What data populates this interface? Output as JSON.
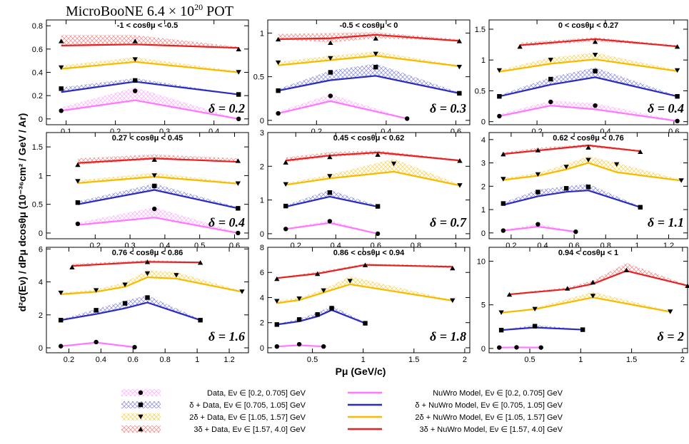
{
  "figure": {
    "title_main": "MicroBooNE 6.4 × 10",
    "title_exp": "20",
    "title_tail": " POT",
    "ylabel": "d²σ(Eν) / dPμ dcosθμ (10⁻³⁶cm² / GeV / Ar)",
    "xlabel": "Pμ (GeV/c)",
    "colors": {
      "r0": "#ff77ff",
      "r1": "#2b2bbf",
      "r2": "#f5bb00",
      "r3": "#e52222"
    }
  },
  "legend": {
    "data": [
      {
        "label": "Data, Eν ∈ [0.2,   0.705] GeV",
        "marker": "circle"
      },
      {
        "label": "δ + Data, Eν ∈ [0.705, 1.05] GeV",
        "marker": "square"
      },
      {
        "label": "2δ + Data, Eν ∈ [1.05,   1.57] GeV",
        "marker": "tri-down"
      },
      {
        "label": "3δ + Data, Eν ∈ [1.57,     4.0] GeV",
        "marker": "tri-up"
      }
    ],
    "model": [
      {
        "label": "NuWro Model, Eν ∈ [0.2,   0.705] GeV"
      },
      {
        "label": "δ + NuWro Model, Eν ∈ [0.705, 1.05] GeV"
      },
      {
        "label": "2δ + NuWro Model, Eν ∈ [1.05,   1.57] GeV"
      },
      {
        "label": "3δ + NuWro Model, Eν ∈ [1.57,     4.0] GeV"
      }
    ]
  },
  "chart_data": [
    {
      "type": "line",
      "title": "-1 < cosθμ < -0.5",
      "delta_label": "δ = 0.2",
      "xlim": [
        0.06,
        0.47
      ],
      "ylim": [
        -0.05,
        0.85
      ],
      "xticks": [
        0.1,
        0.2,
        0.3,
        0.4
      ],
      "yticks": [
        0,
        0.2,
        0.4,
        0.6,
        0.8
      ],
      "series": [
        {
          "x": [
            0.09,
            0.24,
            0.45
          ],
          "data": [
            0.07,
            0.24,
            0.0
          ],
          "model": [
            0.07,
            0.16,
            0.0
          ],
          "band": [
            0.1,
            0.27,
            0.0
          ]
        },
        {
          "x": [
            0.09,
            0.24,
            0.45
          ],
          "data": [
            0.26,
            0.33,
            0.21
          ],
          "model": [
            0.23,
            0.32,
            0.21
          ],
          "band": [
            0.27,
            0.35,
            0.21
          ]
        },
        {
          "x": [
            0.09,
            0.24,
            0.45
          ],
          "data": [
            0.44,
            0.51,
            0.4
          ],
          "model": [
            0.43,
            0.49,
            0.4
          ],
          "band": [
            0.46,
            0.53,
            0.41
          ]
        },
        {
          "x": [
            0.09,
            0.24,
            0.45
          ],
          "data": [
            0.67,
            0.67,
            0.6
          ],
          "model": [
            0.63,
            0.64,
            0.61
          ],
          "band": [
            0.72,
            0.72,
            0.62
          ]
        }
      ]
    },
    {
      "type": "line",
      "title": "-0.5 < cosθμ < 0",
      "delta_label": "δ = 0.3",
      "xlim": [
        0.06,
        0.64
      ],
      "ylim": [
        -0.05,
        1.15
      ],
      "xticks": [
        0.2,
        0.4,
        0.6
      ],
      "yticks": [
        0,
        0.5,
        1
      ],
      "series": [
        {
          "x": [
            0.09,
            0.24,
            0.46
          ],
          "data": [
            0.08,
            0.28,
            0.02
          ],
          "model": [
            0.08,
            0.22,
            0.02
          ],
          "band": [
            0.1,
            0.3,
            0.02
          ]
        },
        {
          "x": [
            0.09,
            0.24,
            0.37,
            0.61
          ],
          "data": [
            0.34,
            0.55,
            0.61,
            0.31
          ],
          "model": [
            0.34,
            0.46,
            0.51,
            0.31
          ],
          "band": [
            0.36,
            0.57,
            0.65,
            0.32
          ]
        },
        {
          "x": [
            0.09,
            0.24,
            0.37,
            0.61
          ],
          "data": [
            0.66,
            0.71,
            0.76,
            0.61
          ],
          "model": [
            0.63,
            0.69,
            0.74,
            0.62
          ],
          "band": [
            0.67,
            0.74,
            0.79,
            0.63
          ]
        },
        {
          "x": [
            0.09,
            0.24,
            0.37,
            0.61
          ],
          "data": [
            0.93,
            0.89,
            0.94,
            0.91
          ],
          "model": [
            0.93,
            0.94,
            0.98,
            0.91
          ],
          "band": [
            0.99,
            1.0,
            1.01,
            0.93
          ]
        }
      ]
    },
    {
      "type": "line",
      "title": "0 < cosθμ < 0.27",
      "delta_label": "δ = 0.4",
      "xlim": [
        0.06,
        0.64
      ],
      "ylim": [
        -0.05,
        1.65
      ],
      "xticks": [
        0.2,
        0.4,
        0.6
      ],
      "yticks": [
        0,
        0.5,
        1,
        1.5
      ],
      "series": [
        {
          "x": [
            0.09,
            0.24,
            0.37,
            0.61
          ],
          "data": [
            0.09,
            0.32,
            0.26,
            0.01
          ],
          "model": [
            0.09,
            0.26,
            0.2,
            0.01
          ],
          "band": [
            0.12,
            0.34,
            0.3,
            0.02
          ]
        },
        {
          "x": [
            0.09,
            0.24,
            0.37,
            0.61
          ],
          "data": [
            0.41,
            0.69,
            0.82,
            0.41
          ],
          "model": [
            0.41,
            0.6,
            0.72,
            0.41
          ],
          "band": [
            0.43,
            0.72,
            0.88,
            0.42
          ]
        },
        {
          "x": [
            0.09,
            0.24,
            0.37,
            0.61
          ],
          "data": [
            0.83,
            1.0,
            1.08,
            0.83
          ],
          "model": [
            0.81,
            0.94,
            1.01,
            0.82
          ],
          "band": [
            0.84,
            1.04,
            1.12,
            0.84
          ]
        },
        {
          "x": [
            0.15,
            0.37,
            0.61
          ],
          "data": [
            1.22,
            1.3,
            1.22
          ],
          "model": [
            1.24,
            1.34,
            1.22
          ],
          "band": [
            1.28,
            1.37,
            1.24
          ]
        }
      ]
    },
    {
      "type": "line",
      "title": "0.27 < cosθμ < 0.45",
      "delta_label": "δ = 0.4",
      "xlim": [
        0.06,
        0.64
      ],
      "ylim": [
        -0.1,
        1.75
      ],
      "xticks": [
        0.2,
        0.3,
        0.4,
        0.5,
        0.6
      ],
      "yticks": [
        0,
        0.5,
        1,
        1.5
      ],
      "series": [
        {
          "x": [
            0.15,
            0.37,
            0.61
          ],
          "data": [
            0.16,
            0.42,
            0.0
          ],
          "model": [
            0.14,
            0.27,
            0.0
          ],
          "band": [
            0.18,
            0.45,
            0.01
          ]
        },
        {
          "x": [
            0.15,
            0.37,
            0.61
          ],
          "data": [
            0.53,
            0.82,
            0.43
          ],
          "model": [
            0.5,
            0.75,
            0.43
          ],
          "band": [
            0.55,
            0.86,
            0.45
          ]
        },
        {
          "x": [
            0.15,
            0.37,
            0.61
          ],
          "data": [
            0.9,
            1.0,
            0.86
          ],
          "model": [
            0.87,
            0.98,
            0.86
          ],
          "band": [
            0.92,
            1.05,
            0.88
          ]
        },
        {
          "x": [
            0.15,
            0.37,
            0.61
          ],
          "data": [
            1.19,
            1.28,
            1.26
          ],
          "model": [
            1.22,
            1.3,
            1.24
          ],
          "band": [
            1.3,
            1.37,
            1.3
          ]
        }
      ]
    },
    {
      "type": "line",
      "title": "0.45 < cosθμ < 0.62",
      "delta_label": "δ = 0.7",
      "xlim": [
        0.06,
        1.07
      ],
      "ylim": [
        -0.15,
        3.0
      ],
      "xticks": [
        0.2,
        0.4,
        0.6,
        0.8,
        1
      ],
      "yticks": [
        0,
        1,
        2,
        3
      ],
      "series": [
        {
          "x": [
            0.15,
            0.37,
            0.61
          ],
          "data": [
            0.14,
            0.37,
            0.0
          ],
          "model": [
            0.14,
            0.32,
            0.0
          ],
          "band": [
            0.16,
            0.4,
            0.01
          ]
        },
        {
          "x": [
            0.15,
            0.37,
            0.61
          ],
          "data": [
            0.82,
            1.22,
            0.81
          ],
          "model": [
            0.8,
            1.1,
            0.8
          ],
          "band": [
            0.85,
            1.3,
            0.83
          ]
        },
        {
          "x": [
            0.15,
            0.37,
            0.69,
            1.02
          ],
          "data": [
            1.46,
            1.7,
            2.07,
            1.43
          ],
          "model": [
            1.45,
            1.64,
            1.84,
            1.43
          ],
          "band": [
            1.5,
            1.75,
            2.22,
            1.46
          ]
        },
        {
          "x": [
            0.15,
            0.37,
            0.61,
            1.02
          ],
          "data": [
            2.12,
            2.28,
            2.35,
            2.17
          ],
          "model": [
            2.17,
            2.32,
            2.41,
            2.17
          ],
          "band": [
            2.26,
            2.42,
            2.47,
            2.2
          ]
        }
      ]
    },
    {
      "type": "line",
      "title": "0.62 < cosθμ < 0.76",
      "delta_label": "δ = 1.1",
      "xlim": [
        0.06,
        1.32
      ],
      "ylim": [
        -0.25,
        4.3
      ],
      "xticks": [
        0.2,
        0.4,
        0.6,
        0.8,
        1,
        1.2
      ],
      "yticks": [
        0,
        1,
        2,
        3,
        4
      ],
      "series": [
        {
          "x": [
            0.15,
            0.37,
            0.61
          ],
          "data": [
            0.1,
            0.37,
            0.05
          ],
          "model": [
            0.1,
            0.27,
            0.05
          ],
          "band": [
            0.13,
            0.4,
            0.06
          ]
        },
        {
          "x": [
            0.15,
            0.37,
            0.55,
            0.69,
            1.02
          ],
          "data": [
            1.26,
            1.75,
            1.91,
            1.97,
            1.1
          ],
          "model": [
            1.2,
            1.57,
            1.76,
            1.82,
            1.1
          ],
          "band": [
            1.3,
            1.85,
            2.0,
            2.1,
            1.13
          ]
        },
        {
          "x": [
            0.15,
            0.37,
            0.55,
            0.69,
            0.87,
            1.28
          ],
          "data": [
            2.3,
            2.5,
            2.82,
            3.12,
            2.93,
            2.24
          ],
          "model": [
            2.27,
            2.45,
            2.72,
            3.0,
            2.6,
            2.24
          ],
          "band": [
            2.35,
            2.58,
            2.95,
            3.3,
            3.0,
            2.28
          ]
        },
        {
          "x": [
            0.15,
            0.37,
            0.69,
            1.02
          ],
          "data": [
            3.38,
            3.55,
            3.67,
            3.48
          ],
          "model": [
            3.38,
            3.53,
            3.75,
            3.5
          ],
          "band": [
            3.45,
            3.65,
            3.8,
            3.55
          ]
        }
      ]
    },
    {
      "type": "line",
      "title": "0.76 < cosθμ < 0.86",
      "delta_label": "δ = 1.6",
      "xlim": [
        0.06,
        1.32
      ],
      "ylim": [
        -0.3,
        6.1
      ],
      "xticks": [
        0.2,
        0.4,
        0.6,
        0.8,
        1,
        1.2
      ],
      "yticks": [
        0,
        2,
        4,
        6
      ],
      "series": [
        {
          "x": [
            0.15,
            0.37,
            0.61
          ],
          "data": [
            0.1,
            0.35,
            0.04
          ],
          "model": [
            0.1,
            0.32,
            0.04
          ],
          "band": [
            0.13,
            0.38,
            0.05
          ]
        },
        {
          "x": [
            0.15,
            0.37,
            0.55,
            0.69,
            1.02
          ],
          "data": [
            1.68,
            2.28,
            2.7,
            3.05,
            1.68
          ],
          "model": [
            1.68,
            2.05,
            2.4,
            2.75,
            1.68
          ],
          "band": [
            1.72,
            2.35,
            2.85,
            3.2,
            1.72
          ]
        },
        {
          "x": [
            0.15,
            0.37,
            0.55,
            0.69,
            0.87,
            1.28
          ],
          "data": [
            3.33,
            3.48,
            3.82,
            4.5,
            4.4,
            3.4
          ],
          "model": [
            3.25,
            3.4,
            3.7,
            4.28,
            4.2,
            3.4
          ],
          "band": [
            3.35,
            3.55,
            3.98,
            4.7,
            4.6,
            3.45
          ]
        },
        {
          "x": [
            0.22,
            0.69,
            1.02
          ],
          "data": [
            4.9,
            5.22,
            5.18
          ],
          "model": [
            4.97,
            5.22,
            5.18
          ],
          "band": [
            5.1,
            5.32,
            5.22
          ]
        }
      ]
    },
    {
      "type": "line",
      "title": "0.86 < cosθμ < 0.94",
      "delta_label": "δ = 1.8",
      "xlim": [
        0.06,
        2.05
      ],
      "ylim": [
        -0.4,
        8.0
      ],
      "xticks": [
        0.5,
        1,
        1.5,
        2
      ],
      "yticks": [
        0,
        2,
        4,
        6,
        8
      ],
      "series": [
        {
          "x": [
            0.15,
            0.37,
            0.61
          ],
          "data": [
            0.1,
            0.28,
            0.1
          ],
          "model": [
            0.1,
            0.2,
            0.1
          ],
          "band": [
            0.12,
            0.3,
            0.12
          ]
        },
        {
          "x": [
            0.15,
            0.37,
            0.55,
            0.69,
            1.02
          ],
          "data": [
            1.85,
            2.25,
            2.65,
            3.15,
            1.95
          ],
          "model": [
            1.85,
            2.1,
            2.5,
            3.0,
            1.95
          ],
          "band": [
            1.9,
            2.3,
            2.8,
            3.35,
            2.0
          ]
        },
        {
          "x": [
            0.15,
            0.37,
            0.61,
            0.87,
            1.88
          ],
          "data": [
            3.7,
            3.9,
            4.55,
            5.3,
            3.75
          ],
          "model": [
            3.55,
            3.8,
            4.4,
            5.05,
            3.75
          ],
          "band": [
            3.75,
            4.0,
            4.65,
            5.7,
            3.8
          ]
        },
        {
          "x": [
            0.15,
            0.55,
            1.02,
            1.88
          ],
          "data": [
            5.5,
            5.9,
            6.6,
            6.35
          ],
          "model": [
            5.55,
            5.9,
            6.6,
            6.45
          ],
          "band": [
            5.6,
            6.05,
            6.7,
            6.55
          ]
        }
      ]
    },
    {
      "type": "line",
      "title": "0.94 < cosθμ < 1",
      "delta_label": "δ = 2",
      "xlim": [
        0.1,
        2.05
      ],
      "ylim": [
        -0.5,
        11.6
      ],
      "xticks": [
        0.5,
        1,
        1.5,
        2
      ],
      "yticks": [
        0,
        5,
        10
      ],
      "series": [
        {
          "x": [
            0.2,
            0.37,
            0.61
          ],
          "data": [
            0.1,
            0.12,
            0.1
          ],
          "model": [
            0.1,
            0.12,
            0.1
          ],
          "band": [
            0.12,
            0.14,
            0.12
          ]
        },
        {
          "x": [
            0.22,
            0.55,
            1.02
          ],
          "data": [
            2.1,
            2.55,
            2.15
          ],
          "model": [
            2.1,
            2.4,
            2.15
          ],
          "band": [
            2.15,
            2.7,
            2.2
          ]
        },
        {
          "x": [
            0.22,
            0.55,
            1.12,
            1.88
          ],
          "data": [
            4.1,
            4.5,
            6.0,
            4.2
          ],
          "model": [
            4.1,
            4.5,
            5.85,
            4.2
          ],
          "band": [
            4.15,
            4.65,
            6.5,
            4.3
          ]
        },
        {
          "x": [
            0.3,
            0.87,
            1.12,
            1.45,
            2.05
          ],
          "data": [
            6.2,
            6.9,
            7.6,
            9.0,
            7.2
          ],
          "model": [
            6.2,
            6.8,
            7.4,
            8.9,
            7.2
          ],
          "band": [
            6.3,
            7.0,
            7.8,
            9.8,
            7.3
          ]
        }
      ]
    }
  ]
}
